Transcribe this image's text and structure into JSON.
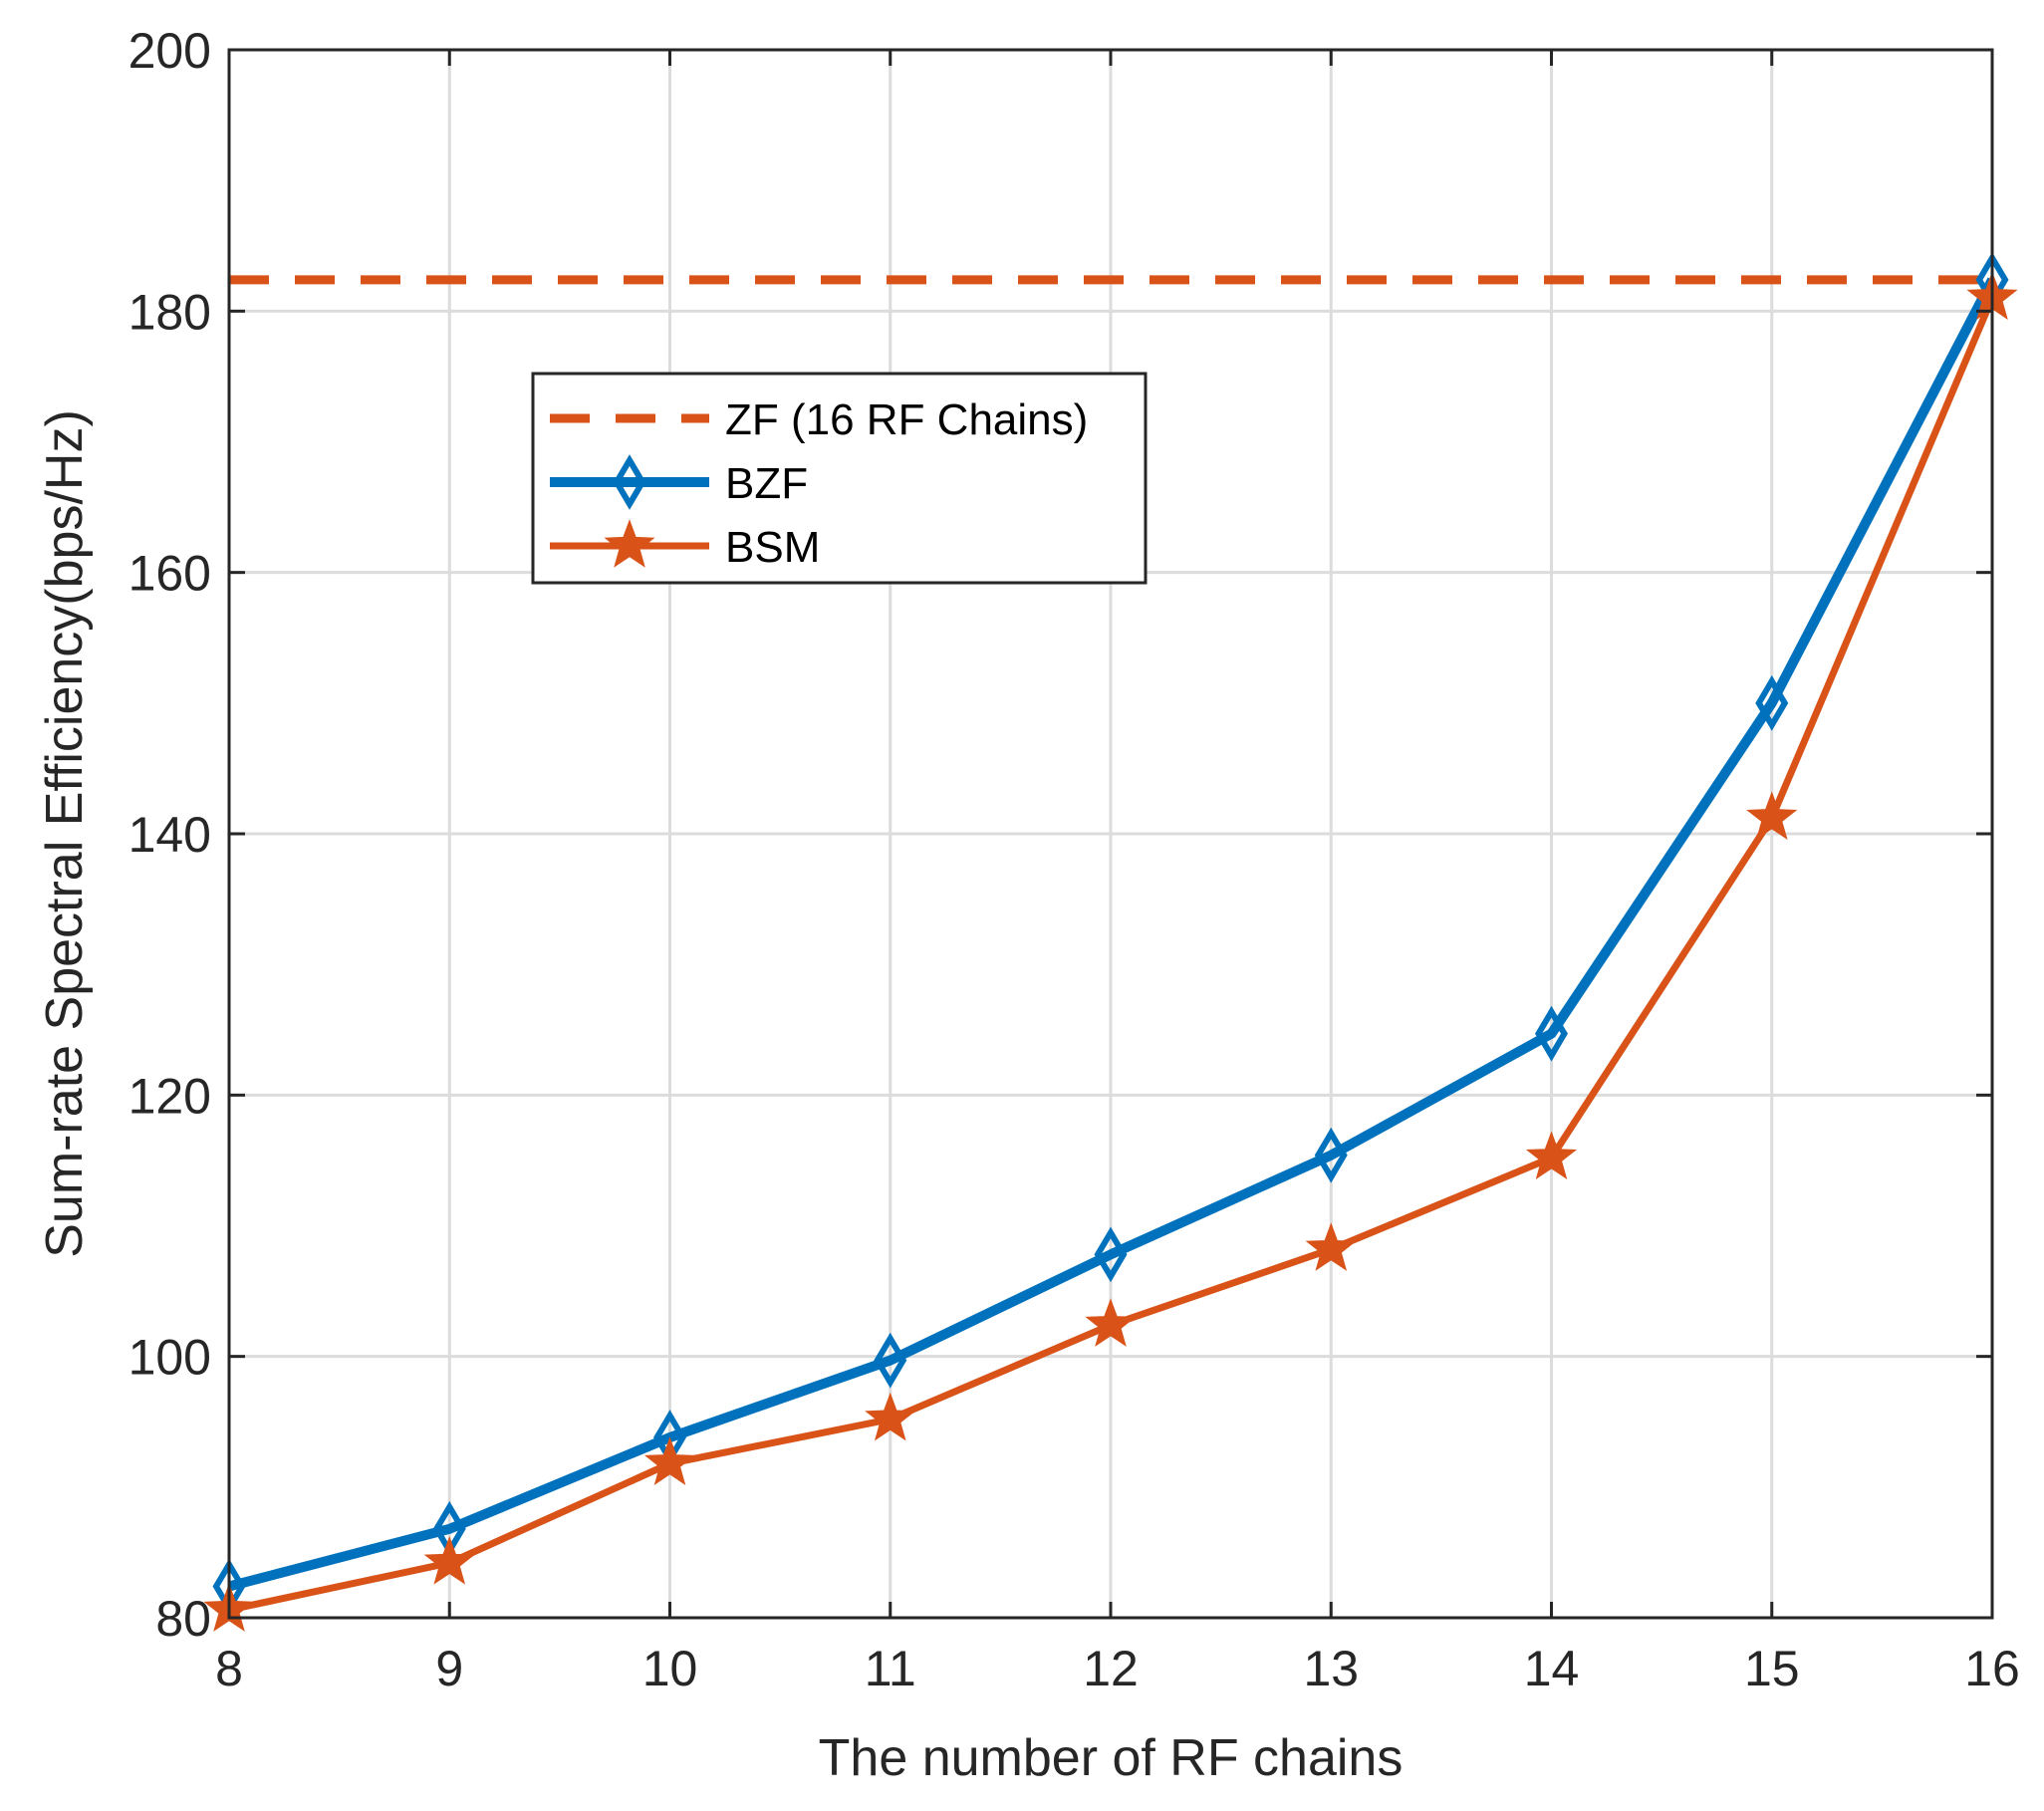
{
  "chart_data": {
    "type": "line",
    "title": "",
    "xlabel": "The number of RF chains",
    "ylabel": "Sum-rate Spectral Efficiency(bps/Hz)",
    "xlim": [
      8,
      16
    ],
    "ylim": [
      80,
      200
    ],
    "xticks": [
      8,
      9,
      10,
      11,
      12,
      13,
      14,
      15,
      16
    ],
    "yticks": [
      80,
      100,
      120,
      140,
      160,
      180,
      200
    ],
    "grid": true,
    "legend_position": "upper-left-center",
    "x": [
      8,
      9,
      10,
      11,
      12,
      13,
      14,
      15,
      16
    ],
    "series": [
      {
        "name": "ZF (16 RF Chains)",
        "style": "dashed",
        "marker": "none",
        "color": "#D95319",
        "constant": 182.4,
        "values": [
          182.4,
          182.4,
          182.4,
          182.4,
          182.4,
          182.4,
          182.4,
          182.4,
          182.4
        ]
      },
      {
        "name": "BZF",
        "style": "solid",
        "marker": "diamond",
        "color": "#0072BD",
        "values": [
          82.4,
          86.8,
          93.8,
          99.7,
          107.8,
          115.4,
          124.7,
          150.0,
          182.4
        ]
      },
      {
        "name": "BSM",
        "style": "solid",
        "marker": "star",
        "color": "#D95319",
        "values": [
          80.6,
          84.2,
          91.8,
          95.2,
          102.4,
          108.2,
          115.2,
          141.2,
          181.0
        ]
      }
    ]
  }
}
